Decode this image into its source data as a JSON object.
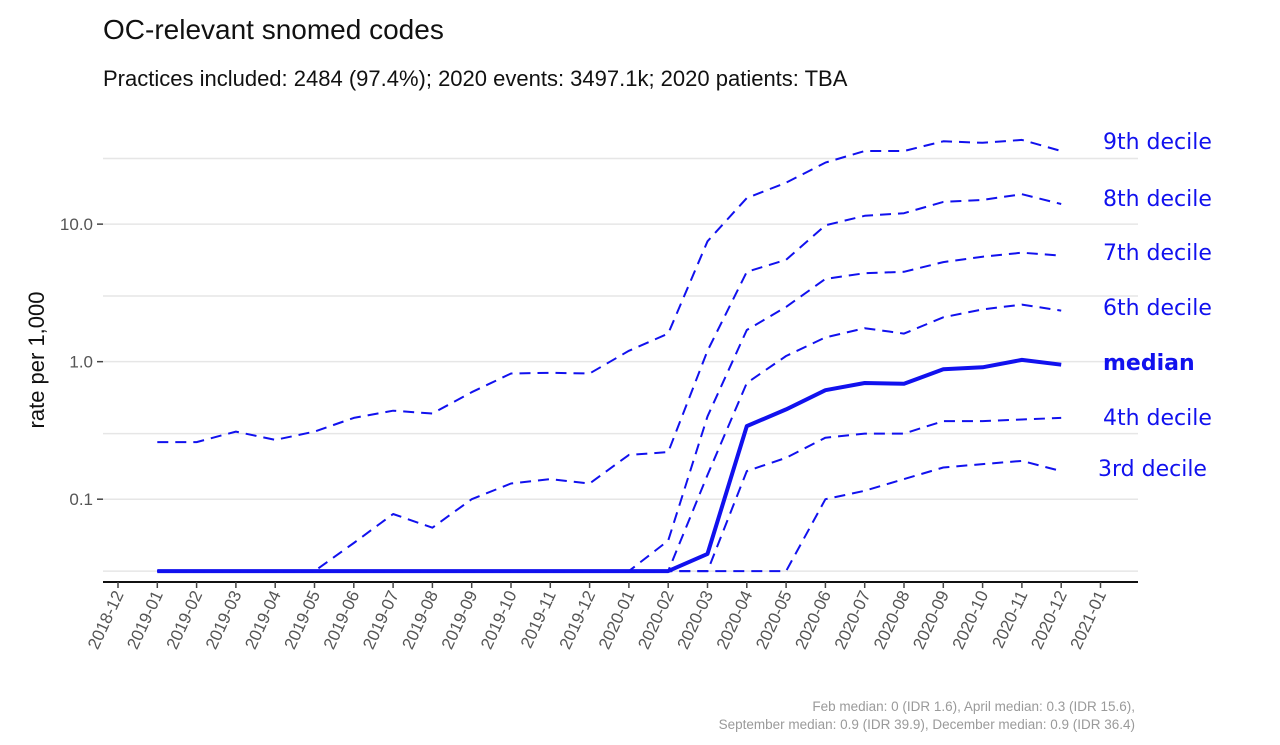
{
  "header": {
    "title": "OC-relevant snomed codes",
    "subtitle": "Practices included: 2484 (97.4%); 2020 events: 3497.1k; 2020 patients: TBA"
  },
  "caption": {
    "line1": "Feb median: 0 (IDR 1.6), April median: 0.3 (IDR 15.6),",
    "line2": "September median: 0.9 (IDR 39.9), December median: 0.9 (IDR 36.4)"
  },
  "colors": {
    "line": "#1111ee",
    "grid": "#e6e6e6",
    "axis": "#111111"
  },
  "chart_data": {
    "type": "line",
    "title": "OC-relevant snomed codes",
    "ylabel": "rate per 1,000",
    "xlabel": "",
    "yscale": "log",
    "ylim": [
      0.025,
      50
    ],
    "yticks": [
      0.1,
      1.0,
      10.0
    ],
    "ytick_labels": [
      "0.1",
      "1.0",
      "10.0"
    ],
    "grid": true,
    "x_ticks": [
      "2018-12",
      "2019-01",
      "2019-02",
      "2019-03",
      "2019-04",
      "2019-05",
      "2019-06",
      "2019-07",
      "2019-08",
      "2019-09",
      "2019-10",
      "2019-11",
      "2019-12",
      "2020-01",
      "2020-02",
      "2020-03",
      "2020-04",
      "2020-05",
      "2020-06",
      "2020-07",
      "2020-08",
      "2020-09",
      "2020-10",
      "2020-11",
      "2020-12",
      "2021-01"
    ],
    "x": [
      "2019-01",
      "2019-02",
      "2019-03",
      "2019-04",
      "2019-05",
      "2019-06",
      "2019-07",
      "2019-08",
      "2019-09",
      "2019-10",
      "2019-11",
      "2019-12",
      "2020-01",
      "2020-02",
      "2020-03",
      "2020-04",
      "2020-05",
      "2020-06",
      "2020-07",
      "2020-08",
      "2020-09",
      "2020-10",
      "2020-11",
      "2020-12"
    ],
    "series": [
      {
        "name": "9th decile",
        "style": "dashed",
        "values": [
          0.26,
          0.26,
          0.31,
          0.27,
          0.31,
          0.39,
          0.44,
          0.42,
          0.6,
          0.82,
          0.83,
          0.82,
          1.2,
          1.6,
          7.5,
          15.5,
          20,
          28,
          34,
          34,
          40,
          39,
          41,
          34
        ]
      },
      {
        "name": "8th decile",
        "style": "dashed",
        "values": [
          0.03,
          0.03,
          0.03,
          0.03,
          0.03,
          0.048,
          0.078,
          0.062,
          0.1,
          0.13,
          0.14,
          0.13,
          0.21,
          0.22,
          1.2,
          4.5,
          5.5,
          9.8,
          11.5,
          12,
          14.5,
          15,
          16.5,
          14
        ]
      },
      {
        "name": "7th decile",
        "style": "dashed",
        "values": [
          0.03,
          0.03,
          0.03,
          0.03,
          0.03,
          0.03,
          0.03,
          0.03,
          0.03,
          0.03,
          0.03,
          0.03,
          0.03,
          0.05,
          0.4,
          1.7,
          2.5,
          4,
          4.4,
          4.5,
          5.3,
          5.8,
          6.2,
          5.9
        ]
      },
      {
        "name": "6th decile",
        "style": "dashed",
        "values": [
          0.03,
          0.03,
          0.03,
          0.03,
          0.03,
          0.03,
          0.03,
          0.03,
          0.03,
          0.03,
          0.03,
          0.03,
          0.03,
          0.03,
          0.15,
          0.7,
          1.1,
          1.5,
          1.75,
          1.6,
          2.1,
          2.4,
          2.6,
          2.35
        ]
      },
      {
        "name": "median",
        "style": "solid",
        "values": [
          0.03,
          0.03,
          0.03,
          0.03,
          0.03,
          0.03,
          0.03,
          0.03,
          0.03,
          0.03,
          0.03,
          0.03,
          0.03,
          0.03,
          0.04,
          0.34,
          0.45,
          0.62,
          0.7,
          0.69,
          0.88,
          0.91,
          1.03,
          0.95
        ]
      },
      {
        "name": "4th decile",
        "style": "dashed",
        "values": [
          0.03,
          0.03,
          0.03,
          0.03,
          0.03,
          0.03,
          0.03,
          0.03,
          0.03,
          0.03,
          0.03,
          0.03,
          0.03,
          0.03,
          0.03,
          0.16,
          0.2,
          0.28,
          0.3,
          0.3,
          0.37,
          0.37,
          0.38,
          0.39
        ]
      },
      {
        "name": "3rd decile",
        "style": "dashed",
        "values": [
          0.03,
          0.03,
          0.03,
          0.03,
          0.03,
          0.03,
          0.03,
          0.03,
          0.03,
          0.03,
          0.03,
          0.03,
          0.03,
          0.03,
          0.03,
          0.03,
          0.03,
          0.1,
          0.115,
          0.14,
          0.17,
          0.18,
          0.19,
          0.16
        ]
      }
    ]
  }
}
